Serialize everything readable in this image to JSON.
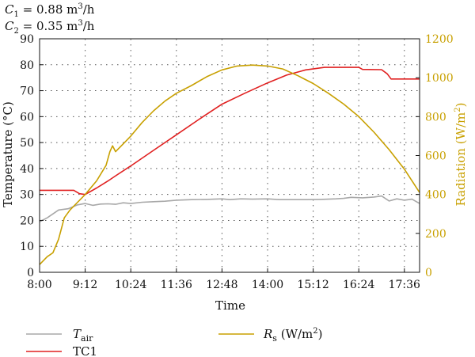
{
  "conditions": [
    {
      "sym": "C",
      "sub": "1",
      "text": " = 0.88 m",
      "sup": "3",
      "unit": "/h"
    },
    {
      "sym": "C",
      "sub": "2",
      "text": " = 0.35 m",
      "sup": "3",
      "unit": "/h"
    }
  ],
  "chart_data": {
    "type": "line",
    "xlabel": "Time",
    "ylabel": "Temperature (°C)",
    "y2label_main": "Radiation (W/m",
    "y2label_sup": "2",
    "y2label_end": ")",
    "x_ticks": [
      "8:00",
      "9:12",
      "10:24",
      "11:36",
      "12:48",
      "14:00",
      "15:12",
      "16:24",
      "17:36"
    ],
    "x_tick_hours": [
      8.0,
      9.2,
      10.4,
      11.6,
      12.8,
      14.0,
      15.2,
      16.4,
      17.6
    ],
    "xlim_hours": [
      8.0,
      18.0
    ],
    "ylim": [
      0,
      90
    ],
    "y_ticks": [
      "0",
      "10",
      "20",
      "30",
      "40",
      "50",
      "60",
      "70",
      "80",
      "90"
    ],
    "y2lim": [
      0,
      1200
    ],
    "y2_ticks": [
      "0",
      "200",
      "400",
      "600",
      "800",
      "1000",
      "1200"
    ],
    "grid": true,
    "colors": {
      "T_air": "#a8a8a8",
      "TC1": "#e02020",
      "Rs": "#c8a000",
      "axis": "#111111",
      "grid": "#555555"
    },
    "series": [
      {
        "name": "T_air",
        "legend_main": "T",
        "legend_sub": "air",
        "axis": "left",
        "x": [
          8.0,
          8.2,
          8.5,
          8.75,
          9.0,
          9.2,
          9.4,
          9.6,
          9.8,
          10.0,
          10.2,
          10.4,
          10.7,
          11.0,
          11.3,
          11.6,
          12.0,
          12.4,
          12.8,
          13.0,
          13.3,
          13.6,
          14.0,
          14.3,
          14.7,
          15.0,
          15.4,
          15.8,
          16.0,
          16.2,
          16.5,
          16.8,
          17.0,
          17.2,
          17.4,
          17.6,
          17.8,
          18.0
        ],
        "y": [
          19.5,
          21,
          24,
          24.5,
          26,
          26.5,
          25.8,
          26.3,
          26.4,
          26.2,
          26.8,
          26.5,
          27,
          27.2,
          27.4,
          27.8,
          28.0,
          28.1,
          28.3,
          28.0,
          28.3,
          28.2,
          28.3,
          28.0,
          28.0,
          28.0,
          28.1,
          28.3,
          28.5,
          28.9,
          28.7,
          29.0,
          29.4,
          27.5,
          28.3,
          27.8,
          28.2,
          26.5
        ]
      },
      {
        "name": "TC1",
        "legend_main": "TC1",
        "axis": "left",
        "x": [
          8.0,
          8.5,
          8.9,
          9.05,
          9.2,
          9.5,
          9.8,
          10.0,
          10.4,
          11.0,
          11.6,
          12.2,
          12.8,
          13.4,
          14.0,
          14.5,
          15.0,
          15.5,
          16.0,
          16.4,
          16.5,
          17.0,
          17.15,
          17.25,
          17.6,
          18.0
        ],
        "y": [
          31.6,
          31.6,
          31.6,
          30.3,
          30.0,
          32.5,
          35.2,
          37.2,
          41,
          47,
          53,
          59,
          64.8,
          69,
          73,
          76,
          78,
          79,
          79,
          79,
          78.2,
          78.1,
          76.5,
          74.5,
          74.5,
          74.5
        ]
      },
      {
        "name": "Rs",
        "legend_main": "R",
        "legend_sub": "s",
        "legend_end": " (W/m",
        "legend_sup": "2",
        "legend_close": ")",
        "axis": "right",
        "x": [
          8.0,
          8.2,
          8.35,
          8.5,
          8.65,
          8.8,
          9.0,
          9.2,
          9.5,
          9.75,
          9.85,
          9.92,
          10.0,
          10.1,
          10.2,
          10.4,
          10.7,
          11.0,
          11.3,
          11.6,
          12.0,
          12.4,
          12.8,
          13.2,
          13.6,
          14.0,
          14.4,
          14.8,
          15.2,
          15.6,
          16.0,
          16.4,
          16.8,
          17.2,
          17.6,
          18.0
        ],
        "y": [
          40,
          80,
          100,
          170,
          280,
          320,
          360,
          400,
          470,
          550,
          620,
          650,
          620,
          640,
          660,
          700,
          770,
          830,
          880,
          920,
          960,
          1005,
          1040,
          1060,
          1065,
          1060,
          1045,
          1010,
          970,
          920,
          865,
          800,
          720,
          630,
          530,
          410
        ]
      }
    ]
  }
}
